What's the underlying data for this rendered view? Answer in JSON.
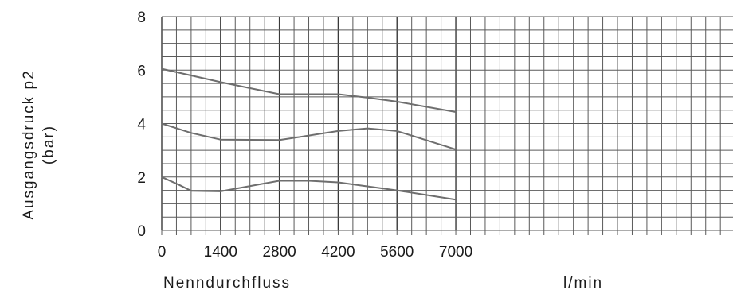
{
  "colors": {
    "grid": "#5a5a5a",
    "series": "#6e6e6e",
    "text": "#1a1a1a"
  },
  "chart_data": {
    "type": "line",
    "xlabel": "Nenndurchfluss",
    "xunit": "l/min",
    "ylabel_line1": "Ausgangsdruck p2",
    "ylabel_line2": "(bar)",
    "xlim": [
      0,
      13600
    ],
    "ylim": [
      0,
      8
    ],
    "x_ticks": [
      0,
      1400,
      2800,
      4200,
      5600,
      7000
    ],
    "y_ticks": [
      0,
      2,
      4,
      6,
      8
    ],
    "x_grid_step": 350,
    "y_grid_step": 0.5,
    "x_major_lines": [
      0,
      1400,
      2800,
      4200,
      5600,
      7000
    ],
    "grid": true,
    "series": [
      {
        "x": [
          0,
          1400,
          2800,
          4200,
          4900,
          5600,
          7000
        ],
        "y": [
          6.05,
          5.55,
          5.1,
          5.1,
          4.97,
          4.82,
          4.43
        ]
      },
      {
        "x": [
          0,
          700,
          1400,
          2800,
          4200,
          4900,
          5600,
          7000
        ],
        "y": [
          4.0,
          3.65,
          3.4,
          3.38,
          3.72,
          3.82,
          3.72,
          3.03
        ]
      },
      {
        "x": [
          0,
          420,
          700,
          1400,
          2800,
          3500,
          4200,
          5600,
          7000
        ],
        "y": [
          2.0,
          1.7,
          1.48,
          1.46,
          1.86,
          1.86,
          1.8,
          1.5,
          1.15
        ]
      }
    ]
  }
}
